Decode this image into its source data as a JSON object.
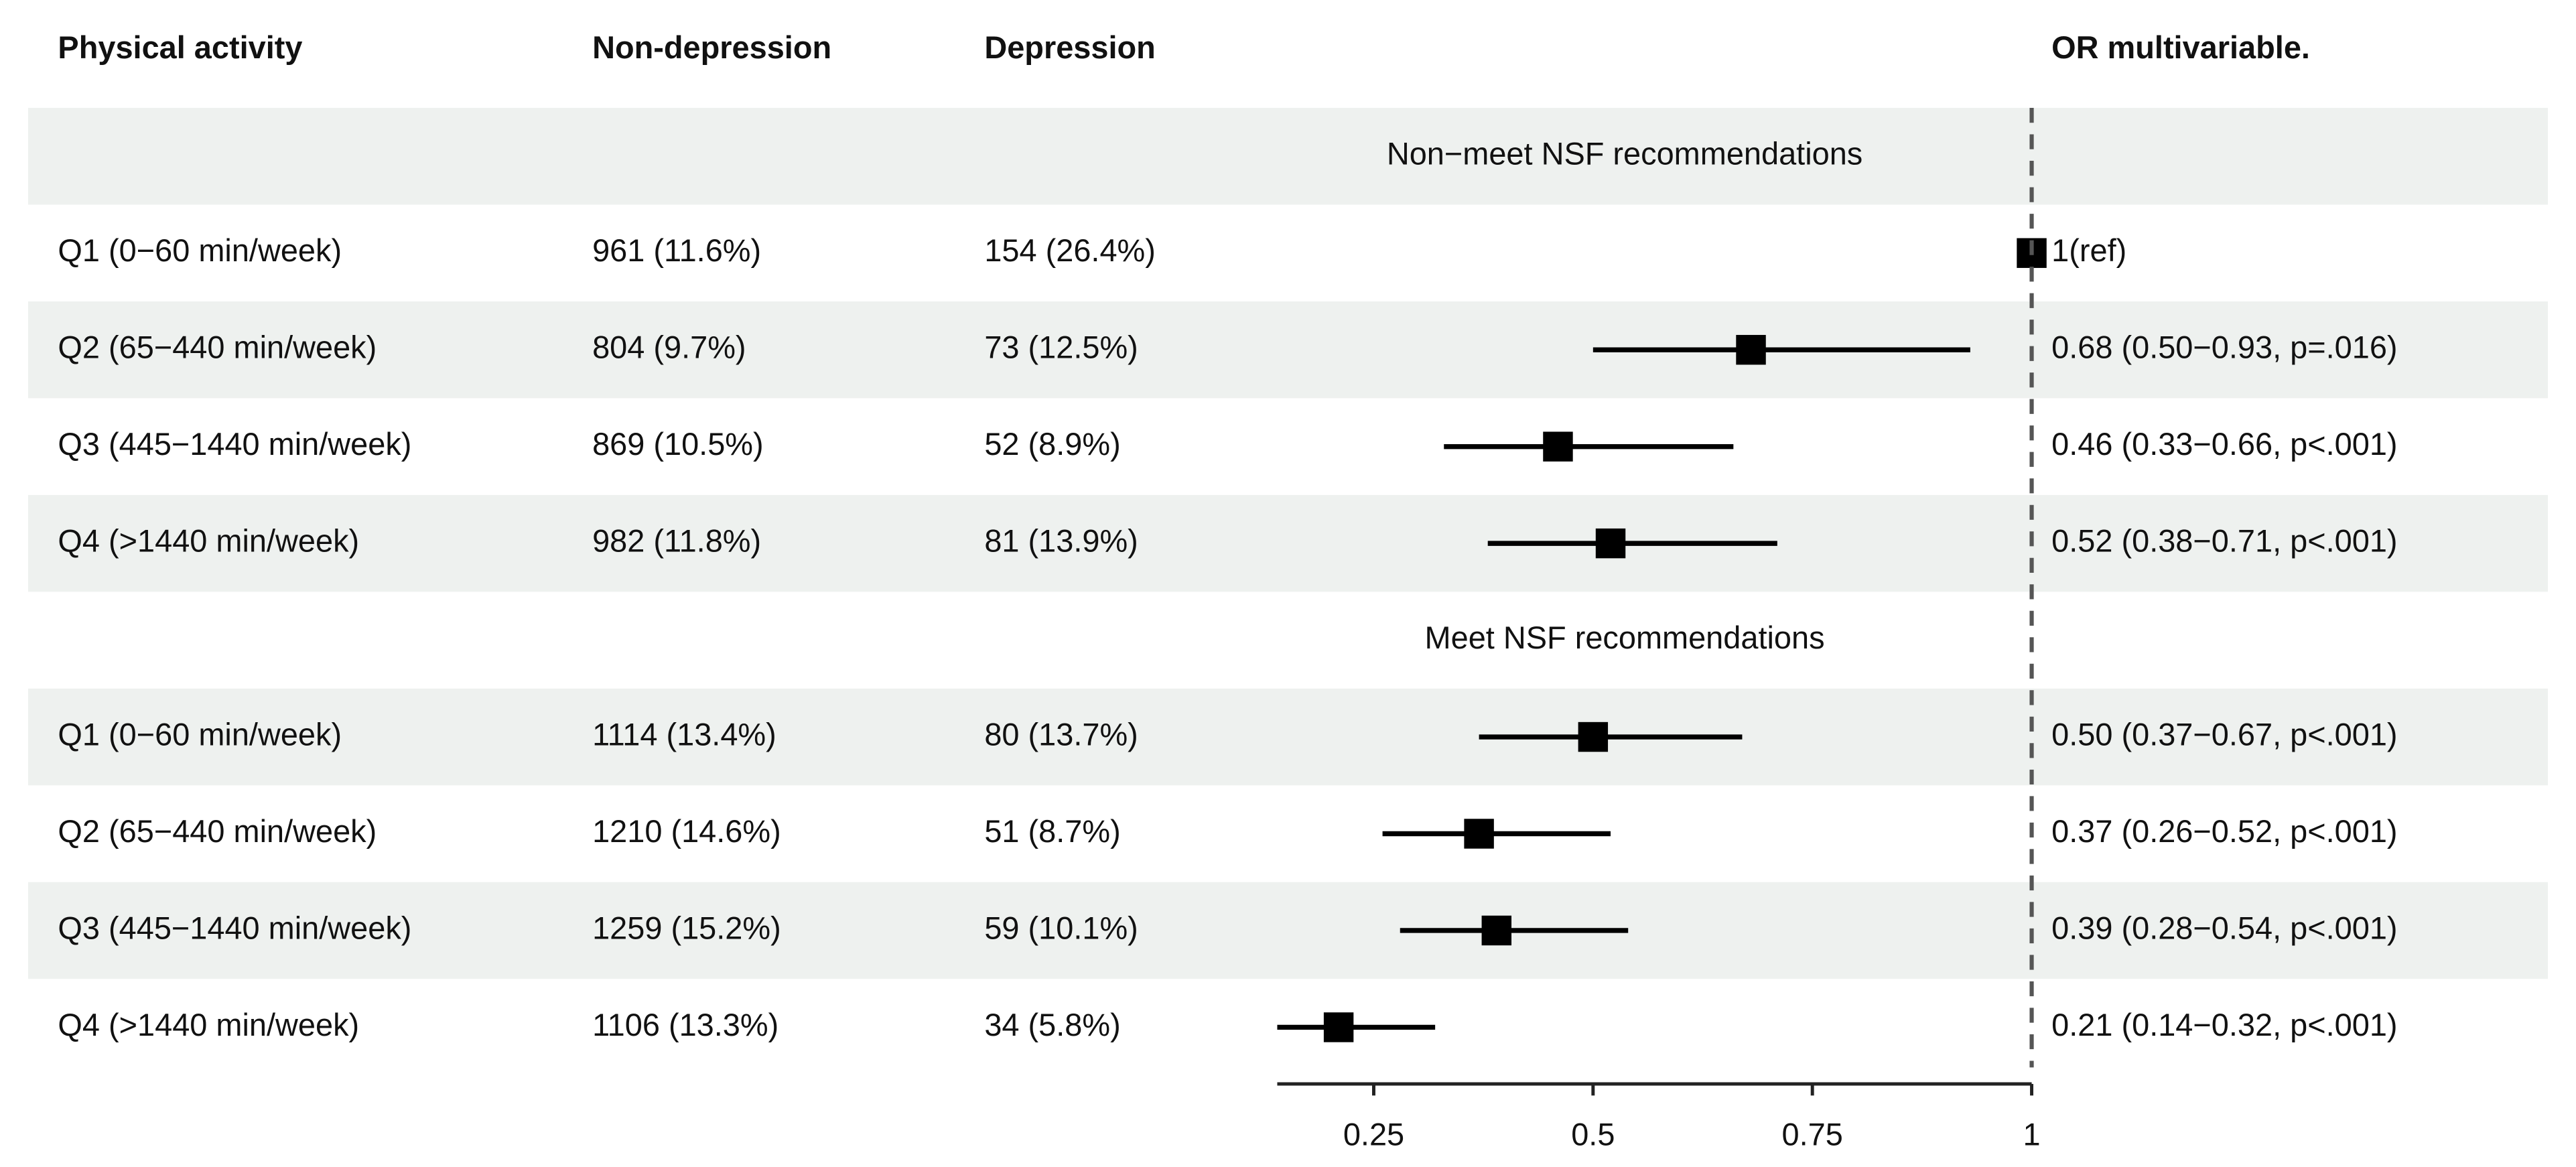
{
  "chart_data": {
    "type": "forest",
    "columns": [
      "Physical activity",
      "Non-depression",
      "Depression",
      "OR multivariable."
    ],
    "groups": [
      {
        "label": "Non−meet NSF recommendations",
        "rows": [
          {
            "label": "Q1 (0−60 min/week)",
            "non_depression": "961 (11.6%)",
            "depression": "154 (26.4%)",
            "or": 1,
            "lower": null,
            "upper": null,
            "or_label": "1(ref)"
          },
          {
            "label": "Q2 (65−440 min/week)",
            "non_depression": "804 (9.7%)",
            "depression": "73 (12.5%)",
            "or": 0.68,
            "lower": 0.5,
            "upper": 0.93,
            "or_label": "0.68 (0.50−0.93, p=.016)"
          },
          {
            "label": "Q3 (445−1440 min/week)",
            "non_depression": "869 (10.5%)",
            "depression": "52 (8.9%)",
            "or": 0.46,
            "lower": 0.33,
            "upper": 0.66,
            "or_label": "0.46 (0.33−0.66, p<.001)"
          },
          {
            "label": "Q4 (>1440 min/week)",
            "non_depression": "982 (11.8%)",
            "depression": "81 (13.9%)",
            "or": 0.52,
            "lower": 0.38,
            "upper": 0.71,
            "or_label": "0.52 (0.38−0.71, p<.001)"
          }
        ]
      },
      {
        "label": "Meet NSF recommendations",
        "rows": [
          {
            "label": "Q1 (0−60 min/week)",
            "non_depression": "1114 (13.4%)",
            "depression": "80 (13.7%)",
            "or": 0.5,
            "lower": 0.37,
            "upper": 0.67,
            "or_label": "0.50 (0.37−0.67, p<.001)"
          },
          {
            "label": "Q2 (65−440 min/week)",
            "non_depression": "1210 (14.6%)",
            "depression": "51 (8.7%)",
            "or": 0.37,
            "lower": 0.26,
            "upper": 0.52,
            "or_label": "0.37 (0.26−0.52, p<.001)"
          },
          {
            "label": "Q3 (445−1440 min/week)",
            "non_depression": "1259 (15.2%)",
            "depression": "59 (10.1%)",
            "or": 0.39,
            "lower": 0.28,
            "upper": 0.54,
            "or_label": "0.39 (0.28−0.54, p<.001)"
          },
          {
            "label": "Q4 (>1440 min/week)",
            "non_depression": "1106 (13.3%)",
            "depression": "34 (5.8%)",
            "or": 0.21,
            "lower": 0.14,
            "upper": 0.32,
            "or_label": "0.21 (0.14−0.32, p<.001)"
          }
        ]
      }
    ],
    "xlim": [
      0.14,
      1
    ],
    "xticks": [
      0.25,
      0.5,
      0.75,
      1
    ],
    "reference": 1,
    "band_color": "#eef1ef",
    "color": "#000000"
  }
}
